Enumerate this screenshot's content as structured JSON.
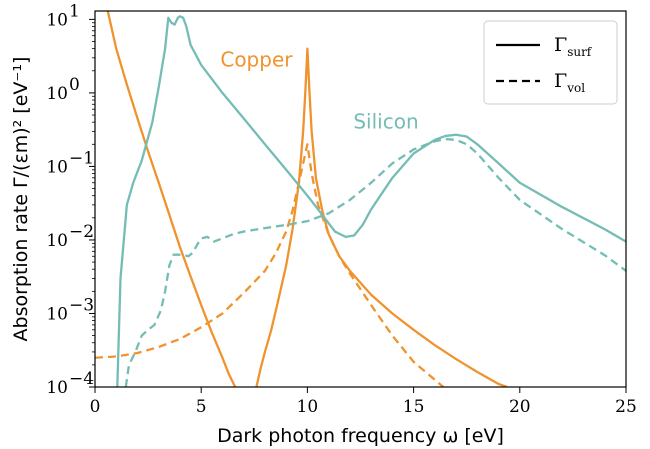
{
  "chart_data": {
    "type": "line",
    "title": "",
    "xlabel": "Dark photon frequency ω [eV]",
    "ylabel": "Absorption rate Γ/(εm)² [eV⁻¹]",
    "xlim": [
      0,
      25
    ],
    "ylim": [
      0.0001,
      13
    ],
    "yscale": "log",
    "grid": false,
    "legend_position": "top-right",
    "x_ticks": [
      0,
      5,
      10,
      15,
      20,
      25
    ],
    "x_tick_labels": [
      "0",
      "5",
      "10",
      "15",
      "20",
      "25"
    ],
    "y_ticks": [
      0.0001,
      0.001,
      0.01,
      0.1,
      1,
      10
    ],
    "y_tick_labels": [
      {
        "base": "10",
        "exp": "−4"
      },
      {
        "base": "10",
        "exp": "−3"
      },
      {
        "base": "10",
        "exp": "−2"
      },
      {
        "base": "10",
        "exp": "−1"
      },
      {
        "base": "10",
        "exp": "0"
      },
      {
        "base": "10",
        "exp": "1"
      }
    ],
    "annotations": [
      {
        "text": "Copper",
        "x": 7.6,
        "y": 2.3,
        "color": "#f0932e"
      },
      {
        "text": "Silicon",
        "x": 13.7,
        "y": 0.33,
        "color": "#74bdb5"
      }
    ],
    "legend": [
      {
        "symbol": "Γ",
        "sub": "surf",
        "style": "solid"
      },
      {
        "symbol": "Γ",
        "sub": "vol",
        "style": "dashed"
      }
    ],
    "colors": {
      "copper": "#f0932e",
      "silicon": "#74bdb5"
    },
    "series": [
      {
        "material": "Copper",
        "kind": "surf",
        "color": "#f0932e",
        "style": "solid",
        "x": [
          0.6,
          1,
          1.5,
          2,
          2.5,
          3,
          3.5,
          4,
          4.5,
          5,
          5.5,
          6,
          6.3,
          6.6
        ],
        "y": [
          13,
          4,
          1.3,
          0.45,
          0.16,
          0.06,
          0.022,
          0.008,
          0.0032,
          0.0013,
          0.00055,
          0.00025,
          0.00015,
          0.0001
        ]
      },
      {
        "material": "Copper",
        "kind": "surf_peak",
        "color": "#f0932e",
        "style": "solid",
        "x": [
          7.6,
          7.8,
          8,
          8.3,
          8.6,
          9,
          9.3,
          9.6,
          9.8,
          9.9,
          10,
          10.1,
          10.2,
          10.4,
          10.7,
          11,
          11.5,
          12,
          13,
          14,
          15,
          16,
          17,
          18,
          19,
          19.4
        ],
        "y": [
          0.0001,
          0.00018,
          0.0003,
          0.0006,
          0.0014,
          0.0045,
          0.014,
          0.06,
          0.3,
          1,
          4,
          1,
          0.3,
          0.07,
          0.025,
          0.012,
          0.006,
          0.0038,
          0.0018,
          0.001,
          0.0006,
          0.00037,
          0.00024,
          0.00016,
          0.00011,
          0.0001
        ]
      },
      {
        "material": "Copper",
        "kind": "vol",
        "color": "#f0932e",
        "style": "dashed",
        "x": [
          0,
          1,
          2,
          3,
          4,
          5,
          6,
          7,
          8,
          8.5,
          9,
          9.3,
          9.6,
          9.8,
          10,
          10.2,
          10.5,
          11,
          11.5,
          12,
          13,
          14,
          15,
          16.4
        ],
        "y": [
          0.00025,
          0.00026,
          0.00029,
          0.00035,
          0.00045,
          0.00065,
          0.001,
          0.0019,
          0.0038,
          0.0065,
          0.013,
          0.025,
          0.06,
          0.11,
          0.2,
          0.08,
          0.03,
          0.012,
          0.006,
          0.0035,
          0.0013,
          0.0005,
          0.00022,
          0.0001
        ]
      },
      {
        "material": "Silicon",
        "kind": "surf",
        "color": "#74bdb5",
        "style": "solid",
        "x": [
          1.05,
          1.2,
          1.5,
          1.8,
          2.2,
          2.7,
          3,
          3.3,
          3.45,
          3.6,
          3.75,
          3.9,
          4,
          4.15,
          4.3,
          4.5,
          5,
          6,
          7,
          8,
          9,
          10,
          10.7,
          11.3,
          11.8,
          12.2,
          12.6,
          13,
          14,
          15,
          16,
          16.5,
          17,
          17.5,
          18,
          19,
          20,
          22,
          24,
          25
        ],
        "y": [
          0.0001,
          0.003,
          0.03,
          0.06,
          0.12,
          0.4,
          1.2,
          4,
          10.5,
          9,
          8.5,
          10.5,
          11,
          10.5,
          8,
          4.5,
          2.4,
          1,
          0.45,
          0.2,
          0.09,
          0.04,
          0.022,
          0.013,
          0.011,
          0.0115,
          0.016,
          0.026,
          0.07,
          0.15,
          0.23,
          0.26,
          0.27,
          0.255,
          0.2,
          0.11,
          0.06,
          0.028,
          0.014,
          0.0095
        ]
      },
      {
        "material": "Silicon",
        "kind": "vol",
        "color": "#74bdb5",
        "style": "dashed",
        "x": [
          1.45,
          1.6,
          1.9,
          2.2,
          2.5,
          2.8,
          3.1,
          3.3,
          3.5,
          3.7,
          4.1,
          4.4,
          4.6,
          4.8,
          5,
          5.3,
          5.6,
          6,
          6.5,
          7,
          8,
          9,
          10,
          11,
          12,
          13,
          14,
          15,
          16,
          16.5,
          17,
          17.5,
          18,
          19,
          20,
          22,
          24,
          25
        ],
        "y": [
          0.0001,
          0.0002,
          0.0003,
          0.0005,
          0.0006,
          0.0007,
          0.0011,
          0.002,
          0.0045,
          0.0063,
          0.0063,
          0.006,
          0.0067,
          0.0085,
          0.0105,
          0.011,
          0.0095,
          0.0105,
          0.012,
          0.013,
          0.0145,
          0.016,
          0.018,
          0.023,
          0.035,
          0.06,
          0.11,
          0.17,
          0.22,
          0.235,
          0.23,
          0.2,
          0.15,
          0.07,
          0.035,
          0.014,
          0.0062,
          0.0038
        ]
      }
    ]
  }
}
